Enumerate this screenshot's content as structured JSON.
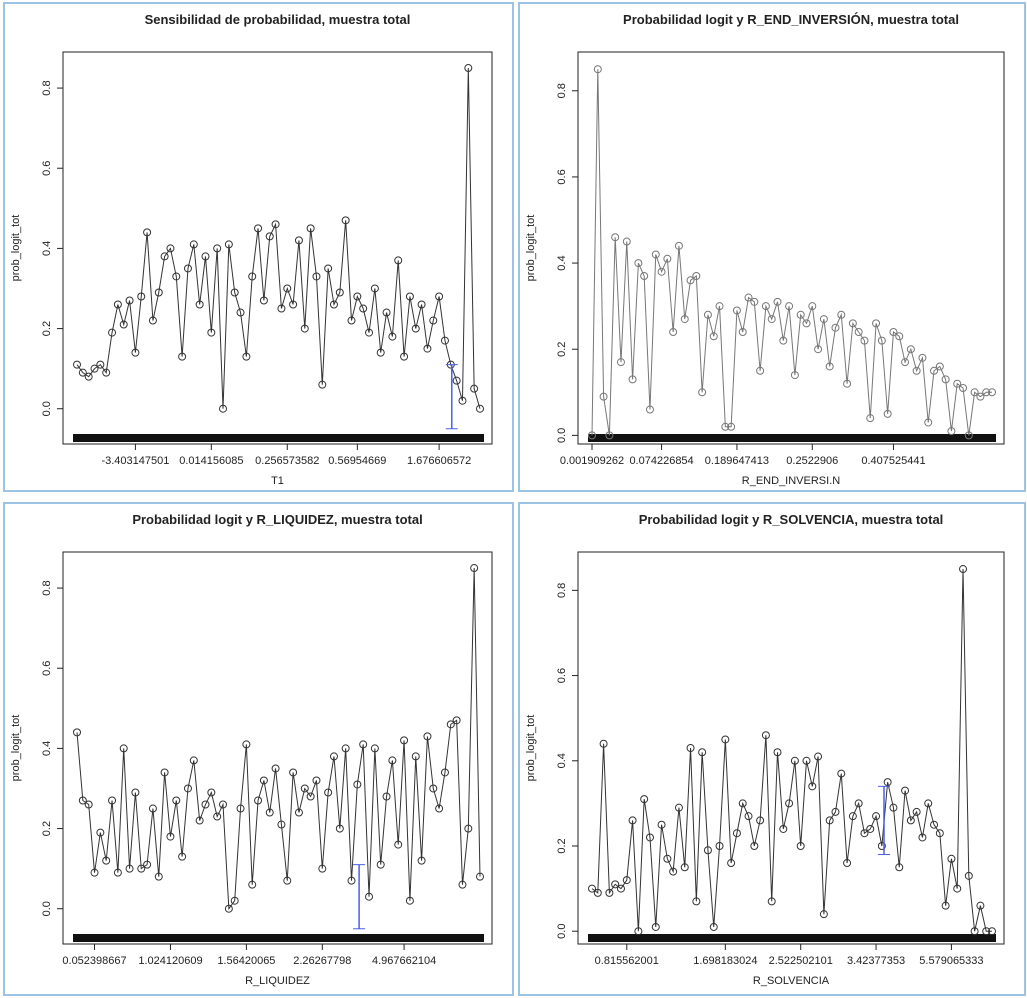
{
  "chart_data": [
    {
      "type": "line",
      "title": "Sensibilidad de probabilidad, muestra total",
      "x_label": "T1",
      "y_label": "prob_logit_tot",
      "color": "#333333",
      "categories": [
        null,
        null,
        null,
        null,
        null,
        null,
        null,
        null,
        null,
        null,
        "-3.403147501",
        null,
        null,
        null,
        null,
        null,
        null,
        null,
        null,
        null,
        null,
        null,
        null,
        "0.014156085",
        null,
        null,
        null,
        null,
        null,
        null,
        null,
        null,
        null,
        null,
        null,
        null,
        "0.256573582",
        null,
        null,
        null,
        null,
        null,
        null,
        null,
        null,
        null,
        null,
        null,
        "0.56954669",
        null,
        null,
        null,
        null,
        null,
        null,
        null,
        null,
        null,
        null,
        null,
        null,
        null,
        "1.676606572",
        null,
        null,
        null,
        null,
        null,
        null,
        null
      ],
      "values": [
        0.11,
        0.09,
        0.08,
        0.1,
        0.11,
        0.09,
        0.19,
        0.26,
        0.21,
        0.27,
        0.14,
        0.28,
        0.44,
        0.22,
        0.29,
        0.38,
        0.4,
        0.33,
        0.13,
        0.35,
        0.41,
        0.26,
        0.38,
        0.19,
        0.4,
        0.0,
        0.41,
        0.29,
        0.24,
        0.13,
        0.33,
        0.45,
        0.27,
        0.43,
        0.46,
        0.25,
        0.3,
        0.26,
        0.42,
        0.2,
        0.45,
        0.33,
        0.06,
        0.35,
        0.26,
        0.29,
        0.47,
        0.22,
        0.28,
        0.25,
        0.19,
        0.3,
        0.14,
        0.24,
        0.18,
        0.37,
        0.13,
        0.28,
        0.2,
        0.26,
        0.15,
        0.22,
        0.28,
        0.17,
        0.11,
        0.07,
        0.02,
        0.85,
        0.05,
        0.0
      ],
      "interval": [
        -0.05,
        0.11
      ],
      "ylim": [
        -0.088,
        0.89
      ],
      "yticks": [
        {
          "value": 0,
          "label": "0.0"
        },
        {
          "value": 0.2,
          "label": "0.2"
        },
        {
          "value": 0.4,
          "label": "0.4"
        },
        {
          "value": 0.6,
          "label": "0.6"
        },
        {
          "value": 0.8,
          "label": "0.8"
        }
      ]
    },
    {
      "type": "line",
      "title": "Probabilidad logit y R_END_INVERSIÓN, muestra total",
      "x_label": "R_END_INVERSI.N",
      "y_label": "prob_logit_tot",
      "color": "#777777",
      "categories": [
        "0.001909262",
        null,
        null,
        null,
        null,
        null,
        null,
        null,
        null,
        null,
        null,
        null,
        "0.074226854",
        null,
        null,
        null,
        null,
        null,
        null,
        null,
        null,
        null,
        null,
        null,
        null,
        "0.189647413",
        null,
        null,
        null,
        null,
        null,
        null,
        null,
        null,
        null,
        null,
        null,
        null,
        "0.2522906",
        null,
        null,
        null,
        null,
        null,
        null,
        null,
        null,
        null,
        null,
        null,
        null,
        null,
        "0.407525441",
        null,
        null,
        null,
        null,
        null,
        null,
        null,
        null,
        null,
        null,
        null,
        null,
        null,
        null,
        null,
        null,
        null
      ],
      "values": [
        0.0,
        0.85,
        0.09,
        0.0,
        0.46,
        0.17,
        0.45,
        0.13,
        0.4,
        0.37,
        0.06,
        0.42,
        0.38,
        0.41,
        0.24,
        0.44,
        0.27,
        0.36,
        0.37,
        0.1,
        0.28,
        0.23,
        0.3,
        0.02,
        0.02,
        0.29,
        0.24,
        0.32,
        0.31,
        0.15,
        0.3,
        0.27,
        0.31,
        0.22,
        0.3,
        0.14,
        0.28,
        0.26,
        0.3,
        0.2,
        0.27,
        0.16,
        0.25,
        0.28,
        0.12,
        0.26,
        0.24,
        0.22,
        0.04,
        0.26,
        0.22,
        0.05,
        0.24,
        0.23,
        0.17,
        0.2,
        0.15,
        0.18,
        0.03,
        0.15,
        0.16,
        0.13,
        0.01,
        0.12,
        0.11,
        0.0,
        0.1,
        0.09,
        0.1,
        0.1
      ],
      "ylim": [
        -0.02,
        0.89
      ],
      "yticks": [
        {
          "value": 0,
          "label": "0.0"
        },
        {
          "value": 0.2,
          "label": "0.2"
        },
        {
          "value": 0.4,
          "label": "0.4"
        },
        {
          "value": 0.6,
          "label": "0.6"
        },
        {
          "value": 0.8,
          "label": "0.8"
        }
      ]
    },
    {
      "type": "line",
      "title": "Probabilidad logit y R_LIQUIDEZ, muestra total",
      "x_label": "R_LIQUIDEZ",
      "y_label": "prob_logit_tot",
      "color": "#333333",
      "categories": [
        null,
        null,
        null,
        "0.052398667",
        null,
        null,
        null,
        null,
        null,
        null,
        null,
        null,
        null,
        null,
        null,
        null,
        "1.024120609",
        null,
        null,
        null,
        null,
        null,
        null,
        null,
        null,
        null,
        null,
        null,
        null,
        "1.56420065",
        null,
        null,
        null,
        null,
        null,
        null,
        null,
        null,
        null,
        null,
        null,
        null,
        "2.26267798",
        null,
        null,
        null,
        null,
        null,
        null,
        null,
        null,
        null,
        null,
        null,
        null,
        null,
        "4.967662104",
        null,
        null,
        null,
        null,
        null,
        null,
        null,
        null,
        null,
        null,
        null,
        null,
        null
      ],
      "values": [
        0.44,
        0.27,
        0.26,
        0.09,
        0.19,
        0.12,
        0.27,
        0.09,
        0.4,
        0.1,
        0.29,
        0.1,
        0.11,
        0.25,
        0.08,
        0.34,
        0.18,
        0.27,
        0.13,
        0.3,
        0.37,
        0.22,
        0.26,
        0.29,
        0.23,
        0.26,
        0.0,
        0.02,
        0.25,
        0.41,
        0.06,
        0.27,
        0.32,
        0.24,
        0.35,
        0.21,
        0.07,
        0.34,
        0.24,
        0.3,
        0.28,
        0.32,
        0.1,
        0.29,
        0.38,
        0.2,
        0.4,
        0.07,
        0.31,
        0.41,
        0.03,
        0.4,
        0.11,
        0.28,
        0.37,
        0.16,
        0.42,
        0.02,
        0.38,
        0.12,
        0.43,
        0.3,
        0.25,
        0.34,
        0.46,
        0.47,
        0.06,
        0.2,
        0.85,
        0.08
      ],
      "interval": [
        -0.05,
        0.11
      ],
      "ylim": [
        -0.088,
        0.89
      ],
      "yticks": [
        {
          "value": 0,
          "label": "0.0"
        },
        {
          "value": 0.2,
          "label": "0.2"
        },
        {
          "value": 0.4,
          "label": "0.4"
        },
        {
          "value": 0.6,
          "label": "0.6"
        },
        {
          "value": 0.8,
          "label": "0.8"
        }
      ]
    },
    {
      "type": "line",
      "title": "Probabilidad logit y R_SOLVENCIA, muestra total",
      "x_label": "R_SOLVENCIA",
      "y_label": "prob_logit_tot",
      "color": "#333333",
      "categories": [
        null,
        null,
        null,
        null,
        null,
        null,
        "0.815562001",
        null,
        null,
        null,
        null,
        null,
        null,
        null,
        null,
        null,
        null,
        null,
        null,
        null,
        null,
        null,
        null,
        "1.698183024",
        null,
        null,
        null,
        null,
        null,
        null,
        null,
        null,
        null,
        null,
        null,
        null,
        "2.522502101",
        null,
        null,
        null,
        null,
        null,
        null,
        null,
        null,
        null,
        null,
        null,
        null,
        "3.42377353",
        null,
        null,
        null,
        null,
        null,
        null,
        null,
        null,
        null,
        null,
        null,
        null,
        "5.579065333",
        null,
        null,
        null,
        null,
        null,
        null,
        null
      ],
      "values": [
        0.1,
        0.09,
        0.44,
        0.09,
        0.11,
        0.1,
        0.12,
        0.26,
        0.0,
        0.31,
        0.22,
        0.01,
        0.25,
        0.17,
        0.14,
        0.29,
        0.15,
        0.43,
        0.07,
        0.42,
        0.19,
        0.01,
        0.2,
        0.45,
        0.16,
        0.23,
        0.3,
        0.27,
        0.2,
        0.26,
        0.46,
        0.07,
        0.42,
        0.24,
        0.3,
        0.4,
        0.2,
        0.4,
        0.34,
        0.41,
        0.04,
        0.26,
        0.28,
        0.37,
        0.16,
        0.27,
        0.3,
        0.23,
        0.24,
        0.27,
        0.2,
        0.35,
        0.29,
        0.15,
        0.33,
        0.26,
        0.28,
        0.22,
        0.3,
        0.25,
        0.23,
        0.06,
        0.17,
        0.1,
        0.85,
        0.13,
        0.0,
        0.06,
        0.0,
        0.0
      ],
      "interval": [
        0.18,
        0.34
      ],
      "ylim": [
        -0.03,
        0.89
      ],
      "yticks": [
        {
          "value": 0,
          "label": "0.0"
        },
        {
          "value": 0.2,
          "label": "0.2"
        },
        {
          "value": 0.4,
          "label": "0.4"
        },
        {
          "value": 0.6,
          "label": "0.6"
        },
        {
          "value": 0.8,
          "label": "0.8"
        }
      ]
    }
  ]
}
